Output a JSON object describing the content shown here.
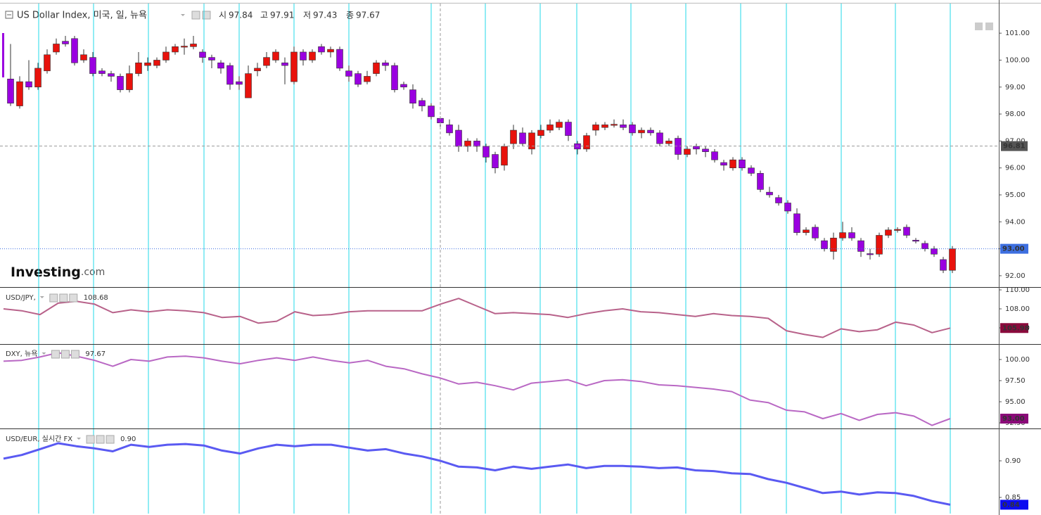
{
  "chart_data": [
    {
      "type": "candlestick",
      "title": "US Dollar Index, 미국, 일, 뉴욕",
      "ohlc": [
        {
          "label": "시",
          "value": "97.84"
        },
        {
          "label": "고",
          "value": "97.91"
        },
        {
          "label": "저",
          "value": "97.43"
        },
        {
          "label": "종",
          "value": "97.67"
        }
      ],
      "open": [
        99.3,
        98.3,
        99.2,
        99.0,
        99.6,
        100.3,
        100.7,
        100.8,
        100.0,
        100.1,
        99.6,
        99.5,
        99.4,
        98.9,
        99.5,
        99.8,
        99.8,
        100.0,
        100.3,
        100.48,
        100.5,
        100.3,
        100.1,
        99.9,
        99.8,
        99.2,
        98.6,
        99.6,
        99.8,
        100.0,
        99.9,
        99.2,
        100.3,
        100.0,
        100.5,
        100.3,
        100.4,
        99.6,
        99.5,
        99.2,
        99.5,
        99.9,
        99.8,
        99.1,
        98.9,
        98.5,
        98.3,
        97.84,
        97.6,
        97.4,
        96.8,
        97.0,
        96.8,
        96.5,
        96.1,
        96.9,
        97.3,
        96.7,
        97.2,
        97.4,
        97.5,
        97.7,
        96.9,
        96.7,
        97.4,
        97.5,
        97.58,
        97.6,
        97.6,
        97.3,
        97.4,
        97.3,
        96.9,
        97.1,
        96.5,
        96.8,
        96.7,
        96.6,
        96.2,
        96.0,
        96.3,
        96.0,
        95.8,
        95.1,
        94.9,
        94.7,
        94.3,
        93.6,
        93.8,
        93.3,
        92.9,
        93.4,
        93.6,
        93.3,
        92.82,
        92.8,
        93.5,
        93.68,
        93.8,
        93.32,
        93.2,
        93.0,
        92.6,
        92.2
      ],
      "high": [
        100.6,
        99.4,
        100.0,
        99.9,
        100.4,
        100.8,
        100.9,
        100.9,
        100.4,
        100.3,
        99.7,
        99.6,
        99.5,
        99.8,
        100.3,
        100.1,
        100.1,
        100.5,
        100.6,
        100.8,
        100.9,
        100.4,
        100.2,
        100.0,
        99.9,
        99.4,
        99.8,
        99.9,
        100.3,
        100.4,
        100.1,
        100.5,
        100.4,
        100.4,
        100.6,
        100.5,
        100.5,
        99.8,
        99.6,
        99.6,
        100.0,
        100.0,
        99.9,
        99.2,
        99.1,
        98.6,
        98.4,
        97.91,
        97.8,
        97.6,
        97.1,
        97.1,
        96.9,
        96.6,
        96.9,
        97.6,
        97.5,
        97.4,
        97.6,
        97.8,
        97.8,
        97.8,
        97.0,
        97.3,
        97.7,
        97.7,
        97.8,
        97.8,
        97.7,
        97.5,
        97.5,
        97.4,
        97.1,
        97.2,
        96.8,
        96.9,
        96.8,
        96.7,
        96.3,
        96.4,
        96.4,
        96.1,
        95.9,
        95.3,
        95.0,
        94.8,
        94.5,
        93.8,
        93.9,
        93.4,
        93.6,
        94.0,
        93.8,
        93.4,
        93.0,
        93.6,
        93.8,
        93.8,
        93.9,
        93.4,
        93.3,
        93.1,
        92.7,
        93.1
      ],
      "low": [
        98.3,
        98.2,
        98.9,
        98.9,
        99.5,
        100.2,
        100.5,
        99.8,
        99.9,
        99.4,
        99.4,
        99.2,
        98.8,
        98.8,
        99.4,
        99.6,
        99.7,
        99.9,
        100.2,
        100.2,
        100.4,
        99.9,
        99.7,
        99.5,
        98.9,
        98.9,
        98.6,
        99.4,
        99.7,
        99.9,
        99.1,
        99.1,
        99.8,
        99.9,
        100.2,
        100.1,
        99.6,
        99.2,
        99.0,
        99.1,
        99.4,
        99.6,
        98.8,
        98.9,
        98.2,
        98.1,
        97.8,
        97.43,
        97.2,
        96.6,
        96.6,
        96.6,
        96.2,
        95.8,
        95.9,
        96.7,
        96.8,
        96.5,
        97.1,
        97.3,
        97.4,
        97.0,
        96.5,
        96.6,
        97.2,
        97.4,
        97.5,
        97.4,
        97.2,
        97.1,
        97.2,
        96.8,
        96.8,
        96.3,
        96.4,
        96.5,
        96.4,
        96.2,
        95.9,
        95.9,
        95.9,
        95.7,
        95.1,
        94.9,
        94.6,
        94.3,
        93.5,
        93.5,
        93.3,
        92.9,
        92.6,
        93.3,
        93.3,
        92.7,
        92.6,
        92.7,
        93.4,
        93.6,
        93.4,
        93.2,
        92.9,
        92.7,
        92.1,
        92.1
      ],
      "close": [
        98.4,
        99.2,
        99.0,
        99.7,
        100.2,
        100.6,
        100.6,
        99.9,
        100.2,
        99.5,
        99.5,
        99.4,
        98.9,
        99.5,
        99.9,
        99.9,
        100.0,
        100.3,
        100.5,
        100.52,
        100.6,
        100.1,
        100.0,
        99.7,
        99.1,
        99.1,
        99.5,
        99.7,
        100.1,
        100.3,
        99.8,
        100.3,
        100.0,
        100.3,
        100.3,
        100.4,
        99.7,
        99.4,
        99.1,
        99.4,
        99.9,
        99.8,
        98.9,
        99.0,
        98.4,
        98.3,
        97.9,
        97.67,
        97.3,
        96.8,
        97.0,
        96.8,
        96.4,
        96.0,
        96.8,
        97.4,
        96.9,
        97.3,
        97.4,
        97.6,
        97.7,
        97.2,
        96.7,
        97.2,
        97.6,
        97.6,
        97.62,
        97.5,
        97.3,
        97.4,
        97.3,
        96.9,
        97.0,
        96.5,
        96.7,
        96.7,
        96.6,
        96.3,
        96.1,
        96.3,
        96.0,
        95.8,
        95.2,
        95.0,
        94.7,
        94.4,
        93.6,
        93.7,
        93.4,
        93.0,
        93.4,
        93.6,
        93.4,
        92.9,
        92.78,
        93.5,
        93.7,
        93.72,
        93.5,
        93.28,
        93.0,
        92.8,
        92.2,
        93.0
      ],
      "up_color": "#e8120c",
      "down_color": "#9a00e0",
      "ylim": [
        91.58,
        102.1
      ],
      "yticks": [
        {
          "value": 92,
          "label": "92.00"
        },
        {
          "value": 93,
          "label": "93.00"
        },
        {
          "value": 94,
          "label": "94.00"
        },
        {
          "value": 95,
          "label": "95.00"
        },
        {
          "value": 96,
          "label": "96.00"
        },
        {
          "value": 97,
          "label": "97.00"
        },
        {
          "value": 98,
          "label": "98.00"
        },
        {
          "value": 99,
          "label": "99.00"
        },
        {
          "value": 100,
          "label": "100.00"
        },
        {
          "value": 101,
          "label": "101.00"
        }
      ],
      "last": {
        "value": 93,
        "label": "93.00"
      },
      "last_color": "#3d6fe0",
      "crosshair": {
        "value": 96.81,
        "label": "96.81"
      },
      "logo": {
        "main": "Investing",
        "suffix": ".com"
      }
    },
    {
      "type": "line",
      "title": "USD/JPY,",
      "legend_value": "108.68",
      "series": [
        {
          "color": "#b8628a",
          "values": [
            108.0,
            107.8,
            107.4,
            108.6,
            108.8,
            108.5,
            107.6,
            107.9,
            107.7,
            107.9,
            107.8,
            107.6,
            107.1,
            107.2,
            106.5,
            106.7,
            107.7,
            107.3,
            107.4,
            107.7,
            107.8,
            107.8,
            107.8,
            107.8,
            108.5,
            109.1,
            108.3,
            107.5,
            107.6,
            107.5,
            107.4,
            107.1,
            107.5,
            107.8,
            108.0,
            107.7,
            107.6,
            107.4,
            107.2,
            107.5,
            107.3,
            107.2,
            107.0,
            105.7,
            105.3,
            105.0,
            105.9,
            105.6,
            105.8,
            106.6,
            106.3,
            105.5,
            105.98
          ]
        }
      ],
      "ylim": [
        104.37,
        110.15
      ],
      "yticks": [
        {
          "value": 106,
          "label": "106.00"
        },
        {
          "value": 108,
          "label": "108.00"
        },
        {
          "value": 110,
          "label": "110.00"
        }
      ],
      "last": {
        "value": 105.98,
        "label": "105.98"
      },
      "last_color": "#8a0a3c"
    },
    {
      "type": "line",
      "title": "DXY, 뉴욕",
      "legend_value": "97.67",
      "series": [
        {
          "color": "#b968c4",
          "values": [
            99.8,
            99.9,
            100.3,
            100.8,
            100.4,
            99.9,
            99.2,
            100.0,
            99.8,
            100.3,
            100.4,
            100.2,
            99.8,
            99.5,
            99.9,
            100.2,
            99.9,
            100.3,
            99.9,
            99.6,
            99.9,
            99.2,
            98.9,
            98.3,
            97.8,
            97.1,
            97.3,
            96.9,
            96.4,
            97.2,
            97.4,
            97.6,
            96.9,
            97.5,
            97.6,
            97.4,
            97.0,
            96.9,
            96.7,
            96.5,
            96.2,
            95.2,
            94.9,
            94.0,
            93.8,
            93.0,
            93.6,
            92.8,
            93.5,
            93.7,
            93.3,
            92.2,
            93.0
          ]
        }
      ],
      "ylim": [
        91.92,
        101.75
      ],
      "yticks": [
        {
          "value": 92.5,
          "label": "92.50"
        },
        {
          "value": 95,
          "label": "95.00"
        },
        {
          "value": 97.5,
          "label": "97.50"
        },
        {
          "value": 100,
          "label": "100.00"
        }
      ],
      "last": {
        "value": 93,
        "label": "93.00"
      },
      "last_color": "#8a0a78"
    },
    {
      "type": "line",
      "title": "USD/EUR, 실시간 FX",
      "legend_value": "0.90",
      "series": [
        {
          "color": "#5a5af2",
          "values": [
            0.903,
            0.908,
            0.916,
            0.924,
            0.92,
            0.917,
            0.913,
            0.922,
            0.919,
            0.922,
            0.923,
            0.921,
            0.914,
            0.91,
            0.917,
            0.922,
            0.92,
            0.922,
            0.922,
            0.918,
            0.914,
            0.916,
            0.91,
            0.906,
            0.9,
            0.892,
            0.891,
            0.887,
            0.892,
            0.889,
            0.892,
            0.895,
            0.89,
            0.893,
            0.893,
            0.892,
            0.89,
            0.891,
            0.887,
            0.886,
            0.883,
            0.882,
            0.875,
            0.87,
            0.863,
            0.856,
            0.858,
            0.854,
            0.857,
            0.856,
            0.852,
            0.845,
            0.84
          ]
        }
      ],
      "ylim": [
        0.8279,
        0.9423
      ],
      "yticks": [
        {
          "value": 0.85,
          "label": "0.85"
        },
        {
          "value": 0.9,
          "label": "0.90"
        }
      ],
      "last": {
        "value": 0.84,
        "label": "0.84"
      },
      "last_color": "#0b0bf0"
    }
  ]
}
